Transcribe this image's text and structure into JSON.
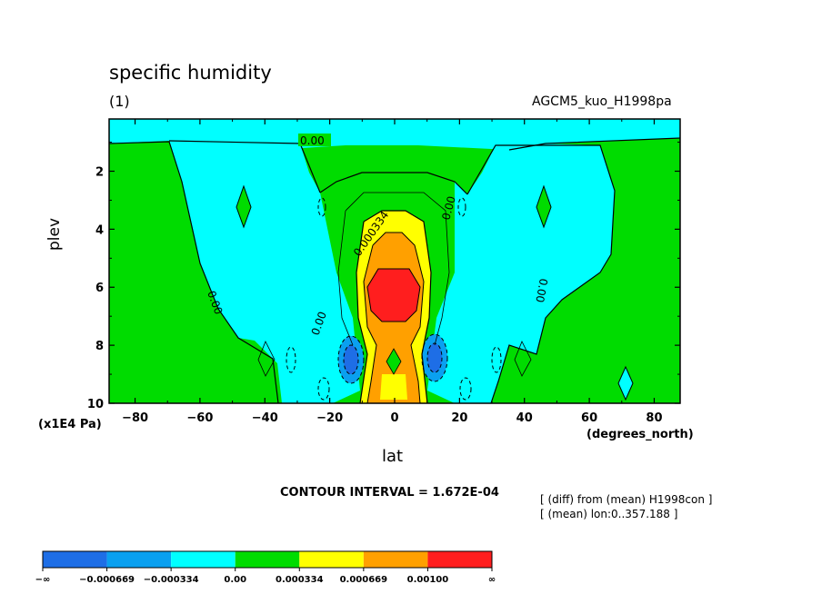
{
  "chart_data": {
    "type": "contour",
    "title": "specific humidity",
    "subtitle": "(1)",
    "run_name": "AGCM5_kuo_H1998pa",
    "xlabel": "lat",
    "x_unit": "(degrees_north)",
    "ylabel": "plev",
    "y_unit": "(x1E4 Pa)",
    "xlim": [
      -88,
      88
    ],
    "ylim": [
      10,
      0.2
    ],
    "x_ticks": [
      "−80",
      "−60",
      "−40",
      "−20",
      "0",
      "20",
      "40",
      "60",
      "80"
    ],
    "y_ticks": [
      "2",
      "4",
      "6",
      "8",
      "10"
    ],
    "contour_interval_text": "CONTOUR INTERVAL = 1.672E-04",
    "contour_labels": [
      "0.00",
      "0.00",
      "0.000334",
      "0.00",
      "0.00",
      "0.00"
    ],
    "notes": [
      "[ (diff) from (mean) H1998con ]",
      "[ (mean) lon:0..357.188 ]"
    ],
    "colorbar": {
      "labels": [
        "−∞",
        "−0.000669",
        "−0.000334",
        "0.00",
        "0.000334",
        "0.000669",
        "0.00100",
        "∞"
      ],
      "colors": [
        "#1e6ee6",
        "#0aa0f0",
        "#00ffff",
        "#00dc00",
        "#ffff00",
        "#ffa000",
        "#ff1e1e"
      ]
    }
  }
}
